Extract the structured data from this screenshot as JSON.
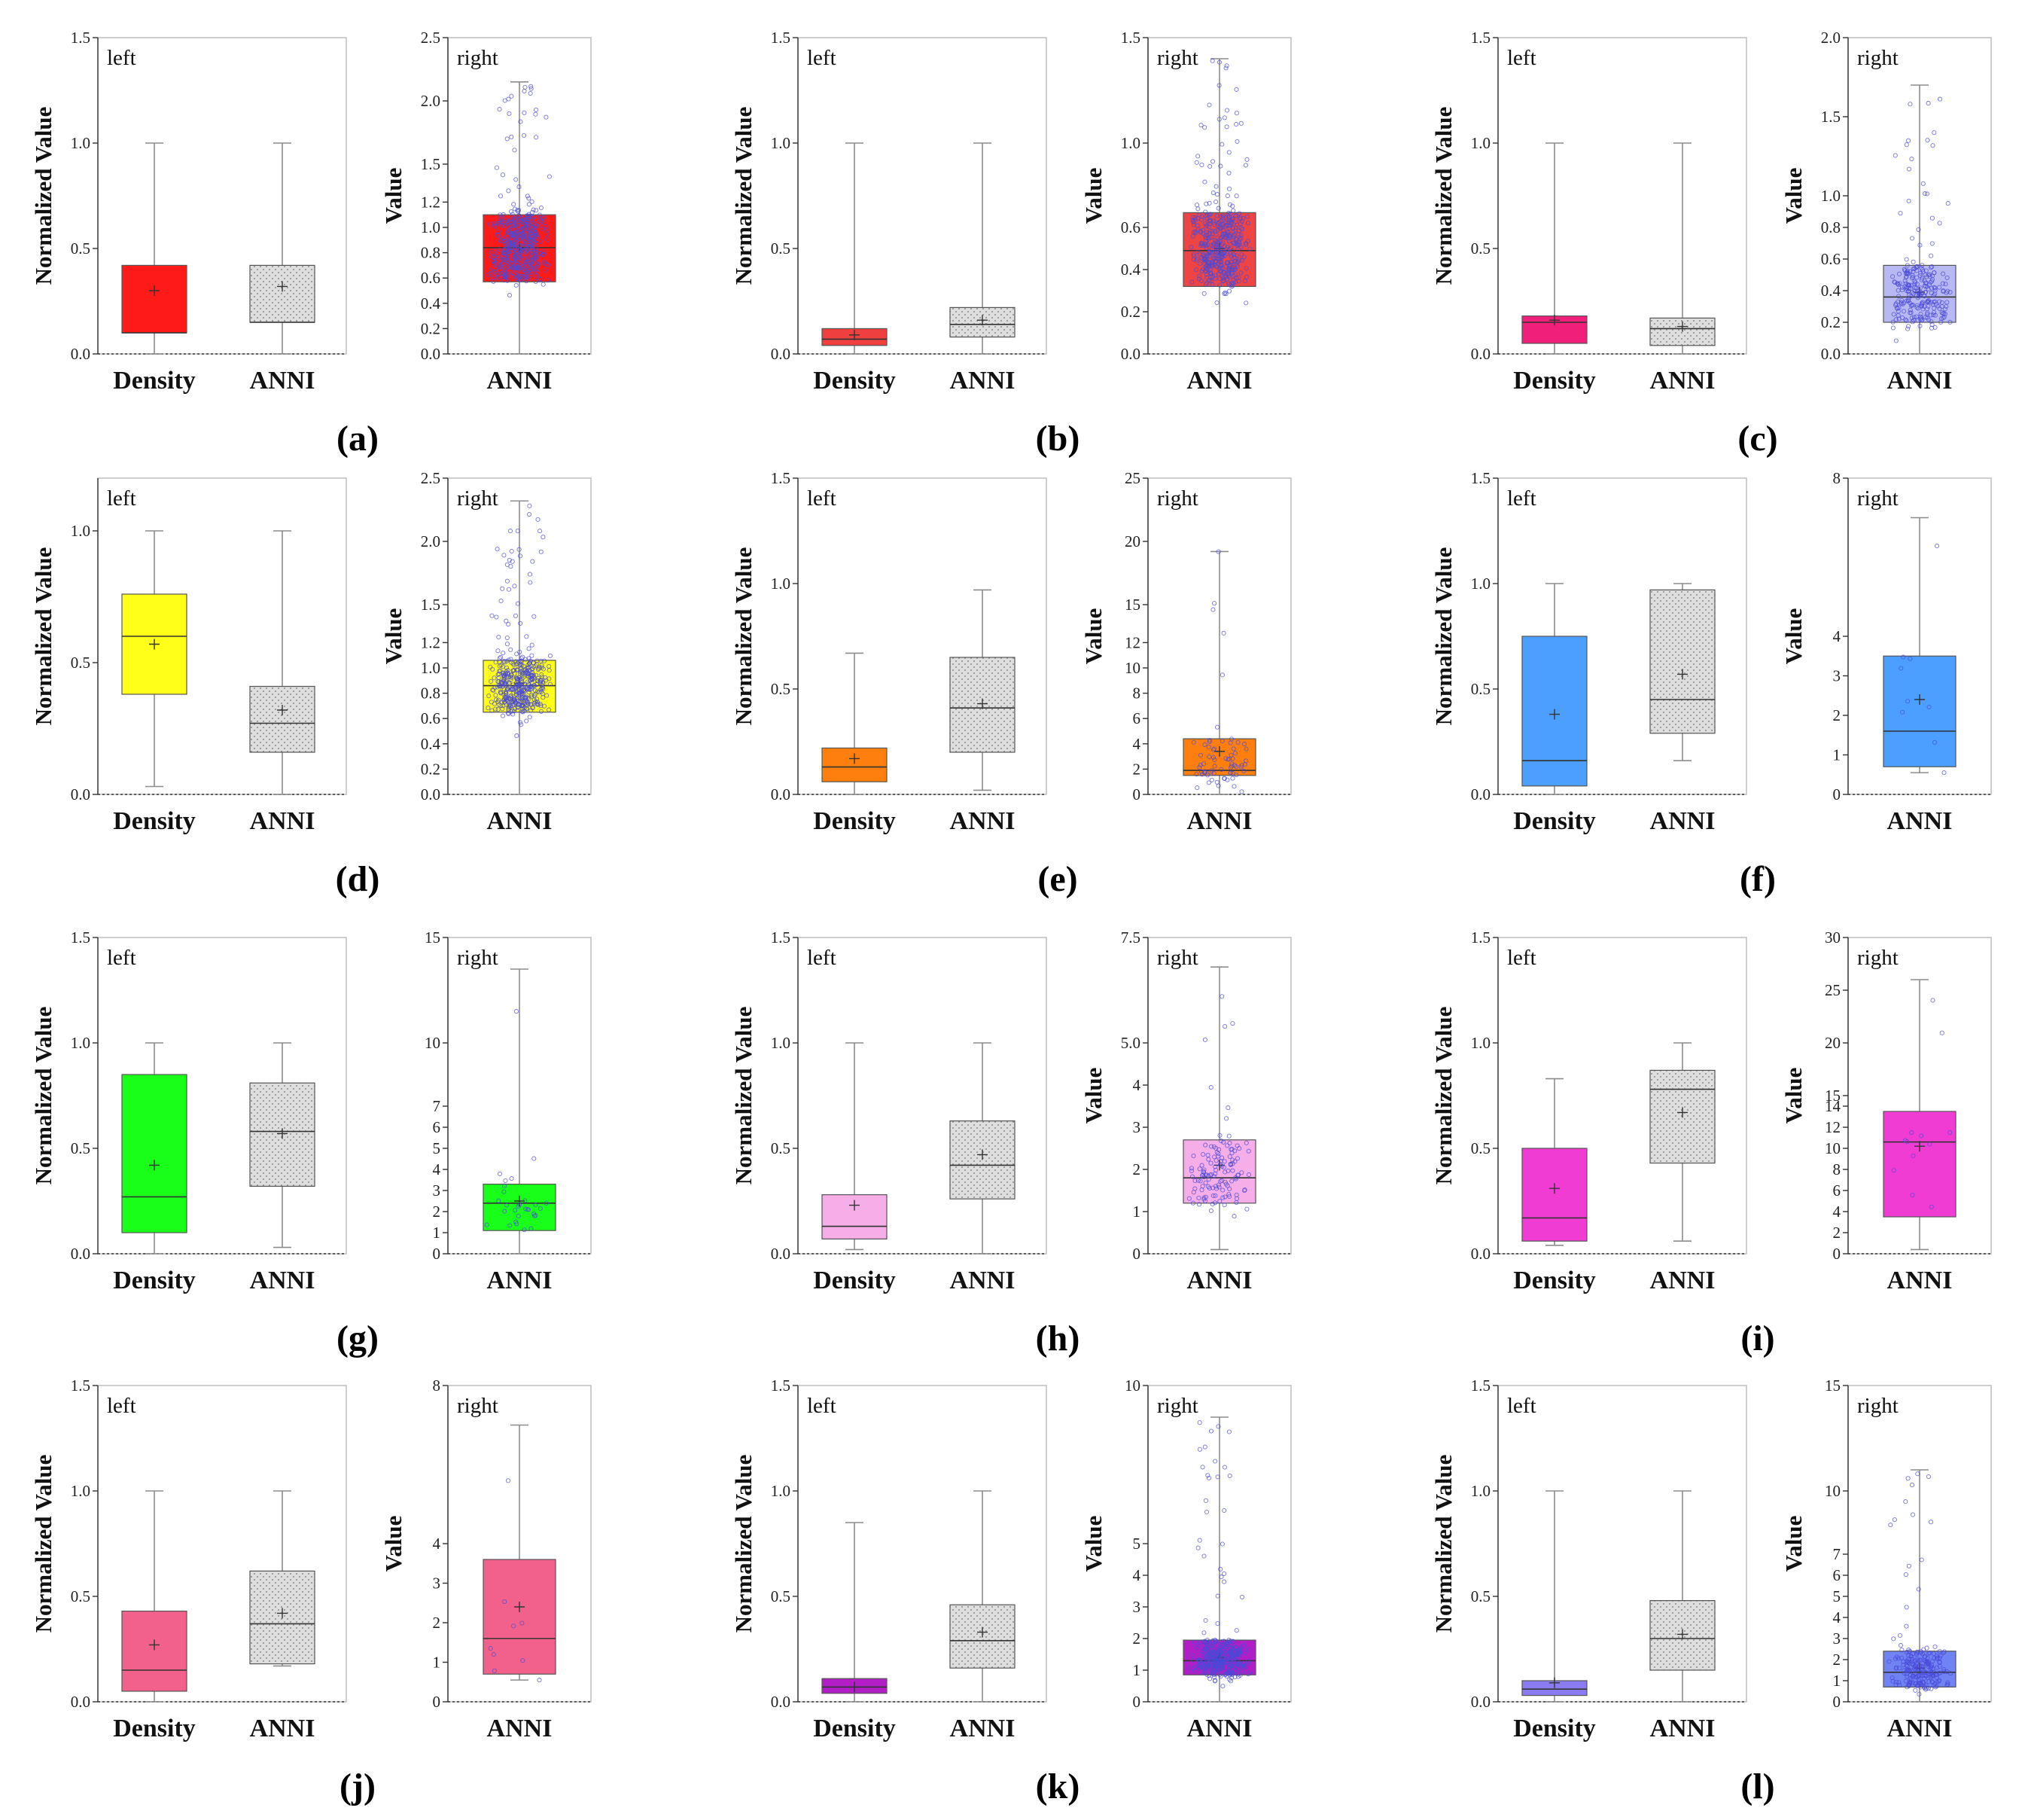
{
  "figure": {
    "panel_labels": [
      "(a)",
      "(b)",
      "(c)",
      "(d)",
      "(e)",
      "(f)",
      "(g)",
      "(h)",
      "(i)",
      "(j)",
      "(k)",
      "(l)"
    ]
  },
  "chart_data": [
    {
      "type": "box",
      "panel": "a",
      "side": "left",
      "corner_label": "left",
      "ylabel": "Normalized Value",
      "ylim": [
        0,
        1.5
      ],
      "yticks": [
        "0.0",
        "0.5",
        "1.0",
        "1.5"
      ],
      "ytick_values": [
        0,
        0.5,
        1,
        1.5
      ],
      "categories": [
        "Density",
        "ANNI"
      ],
      "boxes": [
        {
          "min": 0.0,
          "q1": 0.1,
          "median": 0.1,
          "q3": 0.42,
          "max": 1.0,
          "mean": 0.3,
          "color": "#ff1a1a",
          "hatched": false
        },
        {
          "min": 0.0,
          "q1": 0.15,
          "median": 0.15,
          "q3": 0.42,
          "max": 1.0,
          "mean": 0.32,
          "color": "#d4d4d4",
          "hatched": true
        }
      ]
    },
    {
      "type": "box",
      "panel": "a",
      "side": "right",
      "corner_label": "right",
      "ylabel": "Value",
      "ylim": [
        0,
        2.5
      ],
      "yticks": [
        "0.0",
        "0.2",
        "0.4",
        "0.6",
        "0.8",
        "1.0",
        "1.2",
        "1.5",
        "2.0",
        "2.5"
      ],
      "ytick_values": [
        0,
        0.2,
        0.4,
        0.6,
        0.8,
        1.0,
        1.2,
        1.5,
        2.0,
        2.5
      ],
      "categories": [
        "ANNI"
      ],
      "boxes": [
        {
          "min": 0.0,
          "q1": 0.57,
          "median": 0.84,
          "q3": 1.1,
          "max": 2.15,
          "mean": 0.84,
          "color": "#ff1a1a",
          "hatched": false
        }
      ],
      "point_count": 450
    },
    {
      "type": "box",
      "panel": "b",
      "side": "left",
      "corner_label": "left",
      "ylabel": "Normalized Value",
      "ylim": [
        0,
        1.5
      ],
      "yticks": [
        "0.0",
        "0.5",
        "1.0",
        "1.5"
      ],
      "ytick_values": [
        0,
        0.5,
        1,
        1.5
      ],
      "categories": [
        "Density",
        "ANNI"
      ],
      "boxes": [
        {
          "min": 0.0,
          "q1": 0.04,
          "median": 0.07,
          "q3": 0.12,
          "max": 1.0,
          "mean": 0.09,
          "color": "#ef3f3f",
          "hatched": false
        },
        {
          "min": 0.0,
          "q1": 0.08,
          "median": 0.14,
          "q3": 0.22,
          "max": 1.0,
          "mean": 0.16,
          "color": "#d4d4d4",
          "hatched": true
        }
      ]
    },
    {
      "type": "box",
      "panel": "b",
      "side": "right",
      "corner_label": "right",
      "ylabel": "Value",
      "ylim": [
        0,
        1.5
      ],
      "yticks": [
        "0.0",
        "0.2",
        "0.4",
        "0.6",
        "1.0",
        "1.5"
      ],
      "ytick_values": [
        0,
        0.2,
        0.4,
        0.6,
        1.0,
        1.5
      ],
      "categories": [
        "ANNI"
      ],
      "boxes": [
        {
          "min": 0.0,
          "q1": 0.32,
          "median": 0.49,
          "q3": 0.67,
          "max": 1.4,
          "mean": 0.5,
          "color": "#ef4444",
          "hatched": false
        }
      ],
      "point_count": 420
    },
    {
      "type": "box",
      "panel": "c",
      "side": "left",
      "corner_label": "left",
      "ylabel": "Normalized Value",
      "ylim": [
        0,
        1.5
      ],
      "yticks": [
        "0.0",
        "0.5",
        "1.0",
        "1.5"
      ],
      "ytick_values": [
        0,
        0.5,
        1,
        1.5
      ],
      "categories": [
        "Density",
        "ANNI"
      ],
      "boxes": [
        {
          "min": 0.0,
          "q1": 0.05,
          "median": 0.15,
          "q3": 0.18,
          "max": 1.0,
          "mean": 0.16,
          "color": "#f0207a",
          "hatched": false
        },
        {
          "min": 0.0,
          "q1": 0.04,
          "median": 0.12,
          "q3": 0.17,
          "max": 1.0,
          "mean": 0.13,
          "color": "#d4d4d4",
          "hatched": true
        }
      ]
    },
    {
      "type": "box",
      "panel": "c",
      "side": "right",
      "corner_label": "right",
      "ylabel": "Value",
      "ylim": [
        0,
        2.0
      ],
      "yticks": [
        "0.0",
        "0.2",
        "0.4",
        "0.6",
        "0.8",
        "1.0",
        "1.5",
        "2.0"
      ],
      "ytick_values": [
        0,
        0.2,
        0.4,
        0.6,
        0.8,
        1.0,
        1.5,
        2.0
      ],
      "categories": [
        "ANNI"
      ],
      "boxes": [
        {
          "min": 0.0,
          "q1": 0.2,
          "median": 0.36,
          "q3": 0.56,
          "max": 1.7,
          "mean": 0.39,
          "color": "#b8b8f2",
          "hatched": false
        }
      ],
      "point_count": 250
    },
    {
      "type": "box",
      "panel": "d",
      "side": "left",
      "corner_label": "left",
      "ylabel": "Normalized Value",
      "ylim": [
        0,
        1.2
      ],
      "yticks": [
        "0.0",
        "0.5",
        "1.0"
      ],
      "ytick_values": [
        0,
        0.5,
        1.0
      ],
      "categories": [
        "Density",
        "ANNI"
      ],
      "boxes": [
        {
          "min": 0.03,
          "q1": 0.38,
          "median": 0.6,
          "q3": 0.76,
          "max": 1.0,
          "mean": 0.57,
          "color": "#ffff1a",
          "hatched": false
        },
        {
          "min": 0.0,
          "q1": 0.16,
          "median": 0.27,
          "q3": 0.41,
          "max": 1.0,
          "mean": 0.32,
          "color": "#d4d4d4",
          "hatched": true
        }
      ]
    },
    {
      "type": "box",
      "panel": "d",
      "side": "right",
      "corner_label": "right",
      "ylabel": "Value",
      "ylim": [
        0,
        2.5
      ],
      "yticks": [
        "0.0",
        "0.2",
        "0.4",
        "0.6",
        "0.8",
        "1.0",
        "1.2",
        "1.5",
        "2.0",
        "2.5"
      ],
      "ytick_values": [
        0,
        0.2,
        0.4,
        0.6,
        0.8,
        1.0,
        1.2,
        1.5,
        2.0,
        2.5
      ],
      "categories": [
        "ANNI"
      ],
      "boxes": [
        {
          "min": 0.0,
          "q1": 0.65,
          "median": 0.86,
          "q3": 1.06,
          "max": 2.32,
          "mean": 0.88,
          "color": "#ffff1a",
          "hatched": false
        }
      ],
      "point_count": 450
    },
    {
      "type": "box",
      "panel": "e",
      "side": "left",
      "corner_label": "left",
      "ylabel": "Normalized Value",
      "ylim": [
        0,
        1.5
      ],
      "yticks": [
        "0.0",
        "0.5",
        "1.0",
        "1.5"
      ],
      "ytick_values": [
        0,
        0.5,
        1,
        1.5
      ],
      "categories": [
        "Density",
        "ANNI"
      ],
      "boxes": [
        {
          "min": 0.0,
          "q1": 0.06,
          "median": 0.13,
          "q3": 0.22,
          "max": 0.67,
          "mean": 0.17,
          "color": "#ff7f0e",
          "hatched": false
        },
        {
          "min": 0.02,
          "q1": 0.2,
          "median": 0.41,
          "q3": 0.65,
          "max": 0.97,
          "mean": 0.43,
          "color": "#d4d4d4",
          "hatched": true
        }
      ]
    },
    {
      "type": "box",
      "panel": "e",
      "side": "right",
      "corner_label": "right",
      "ylabel": "Value",
      "ylim": [
        0,
        25
      ],
      "yticks": [
        "0",
        "2",
        "4",
        "6",
        "8",
        "10",
        "12",
        "15",
        "20",
        "25"
      ],
      "ytick_values": [
        0,
        2,
        4,
        6,
        8,
        10,
        12,
        15,
        20,
        25
      ],
      "categories": [
        "ANNI"
      ],
      "boxes": [
        {
          "min": 0.0,
          "q1": 1.5,
          "median": 1.9,
          "q3": 4.4,
          "max": 19.2,
          "mean": 3.4,
          "color": "#ff7f0e",
          "hatched": false
        }
      ],
      "point_count": 70
    },
    {
      "type": "box",
      "panel": "f",
      "side": "left",
      "corner_label": "left",
      "ylabel": "Normalized Value",
      "ylim": [
        0,
        1.5
      ],
      "yticks": [
        "0.0",
        "0.5",
        "1.0",
        "1.5"
      ],
      "ytick_values": [
        0,
        0.5,
        1,
        1.5
      ],
      "categories": [
        "Density",
        "ANNI"
      ],
      "boxes": [
        {
          "min": 0.0,
          "q1": 0.04,
          "median": 0.16,
          "q3": 0.75,
          "max": 1.0,
          "mean": 0.38,
          "color": "#4d9fff",
          "hatched": false
        },
        {
          "min": 0.16,
          "q1": 0.29,
          "median": 0.45,
          "q3": 0.97,
          "max": 1.0,
          "mean": 0.57,
          "color": "#d4d4d4",
          "hatched": true
        }
      ]
    },
    {
      "type": "box",
      "panel": "f",
      "side": "right",
      "corner_label": "right",
      "ylabel": "Value",
      "ylim": [
        0,
        8
      ],
      "yticks": [
        "0",
        "1",
        "2",
        "3",
        "4",
        "8"
      ],
      "ytick_values": [
        0,
        1,
        2,
        3,
        4,
        8
      ],
      "categories": [
        "ANNI"
      ],
      "boxes": [
        {
          "min": 0.55,
          "q1": 0.7,
          "median": 1.6,
          "q3": 3.5,
          "max": 7.0,
          "mean": 2.4,
          "color": "#4d9fff",
          "hatched": false
        }
      ],
      "point_count": 9
    },
    {
      "type": "box",
      "panel": "g",
      "side": "left",
      "corner_label": "left",
      "ylabel": "Normalized Value",
      "ylim": [
        0,
        1.5
      ],
      "yticks": [
        "0.0",
        "0.5",
        "1.0",
        "1.5"
      ],
      "ytick_values": [
        0,
        0.5,
        1,
        1.5
      ],
      "categories": [
        "Density",
        "ANNI"
      ],
      "boxes": [
        {
          "min": 0.0,
          "q1": 0.1,
          "median": 0.27,
          "q3": 0.85,
          "max": 1.0,
          "mean": 0.42,
          "color": "#1aff1a",
          "hatched": false
        },
        {
          "min": 0.03,
          "q1": 0.32,
          "median": 0.58,
          "q3": 0.81,
          "max": 1.0,
          "mean": 0.57,
          "color": "#d4d4d4",
          "hatched": true
        }
      ]
    },
    {
      "type": "box",
      "panel": "g",
      "side": "right",
      "corner_label": "right",
      "ylabel": "",
      "ylim": [
        0,
        15
      ],
      "yticks": [
        "0",
        "1",
        "2",
        "3",
        "4",
        "5",
        "6",
        "7",
        "10",
        "15"
      ],
      "ytick_values": [
        0,
        1,
        2,
        3,
        4,
        5,
        6,
        7,
        10,
        15
      ],
      "categories": [
        "ANNI"
      ],
      "boxes": [
        {
          "min": 0.0,
          "q1": 1.1,
          "median": 2.4,
          "q3": 3.3,
          "max": 13.5,
          "mean": 2.5,
          "color": "#1aff1a",
          "hatched": false
        }
      ],
      "point_count": 30
    },
    {
      "type": "box",
      "panel": "h",
      "side": "left",
      "corner_label": "left",
      "ylabel": "Normalized Value",
      "ylim": [
        0,
        1.5
      ],
      "yticks": [
        "0.0",
        "0.5",
        "1.0",
        "1.5"
      ],
      "ytick_values": [
        0,
        0.5,
        1,
        1.5
      ],
      "categories": [
        "Density",
        "ANNI"
      ],
      "boxes": [
        {
          "min": 0.02,
          "q1": 0.07,
          "median": 0.13,
          "q3": 0.28,
          "max": 1.0,
          "mean": 0.23,
          "color": "#f5aee8",
          "hatched": false
        },
        {
          "min": 0.0,
          "q1": 0.26,
          "median": 0.42,
          "q3": 0.63,
          "max": 1.0,
          "mean": 0.47,
          "color": "#d4d4d4",
          "hatched": true
        }
      ]
    },
    {
      "type": "box",
      "panel": "h",
      "side": "right",
      "corner_label": "right",
      "ylabel": "Value",
      "ylim": [
        0,
        7.5
      ],
      "yticks": [
        "0",
        "1",
        "2",
        "3",
        "4",
        "5.0",
        "7.5"
      ],
      "ytick_values": [
        0,
        1,
        2,
        3,
        4,
        5,
        7.5
      ],
      "categories": [
        "ANNI"
      ],
      "boxes": [
        {
          "min": 0.1,
          "q1": 1.2,
          "median": 1.8,
          "q3": 2.7,
          "max": 6.8,
          "mean": 2.1,
          "color": "#f5aee8",
          "hatched": false
        }
      ],
      "point_count": 130
    },
    {
      "type": "box",
      "panel": "i",
      "side": "left",
      "corner_label": "left",
      "ylabel": "Normalized Value",
      "ylim": [
        0,
        1.5
      ],
      "yticks": [
        "0.0",
        "0.5",
        "1.0",
        "1.5"
      ],
      "ytick_values": [
        0,
        0.5,
        1,
        1.5
      ],
      "categories": [
        "Density",
        "ANNI"
      ],
      "boxes": [
        {
          "min": 0.04,
          "q1": 0.06,
          "median": 0.17,
          "q3": 0.5,
          "max": 0.83,
          "mean": 0.31,
          "color": "#f03cd2",
          "hatched": false
        },
        {
          "min": 0.06,
          "q1": 0.43,
          "median": 0.78,
          "q3": 0.87,
          "max": 1.0,
          "mean": 0.67,
          "color": "#d4d4d4",
          "hatched": true
        }
      ]
    },
    {
      "type": "box",
      "panel": "i",
      "side": "right",
      "corner_label": "right",
      "ylabel": "Value",
      "ylim": [
        0,
        30
      ],
      "yticks": [
        "0",
        "2",
        "4",
        "6",
        "8",
        "10",
        "12",
        "14",
        "15",
        "20",
        "25",
        "30"
      ],
      "ytick_values": [
        0,
        2,
        4,
        6,
        8,
        10,
        12,
        14,
        15,
        20,
        25,
        30
      ],
      "categories": [
        "ANNI"
      ],
      "boxes": [
        {
          "min": 0.4,
          "q1": 3.5,
          "median": 10.6,
          "q3": 13.5,
          "max": 26.0,
          "mean": 10.2,
          "color": "#f03cd2",
          "hatched": false
        }
      ],
      "point_count": 12
    },
    {
      "type": "box",
      "panel": "j",
      "side": "left",
      "corner_label": "left",
      "ylabel": "Normalized Value",
      "ylim": [
        0,
        1.5
      ],
      "yticks": [
        "0.0",
        "0.5",
        "1.0",
        "1.5"
      ],
      "ytick_values": [
        0,
        0.5,
        1,
        1.5
      ],
      "categories": [
        "Density",
        "ANNI"
      ],
      "boxes": [
        {
          "min": 0.0,
          "q1": 0.05,
          "median": 0.15,
          "q3": 0.43,
          "max": 1.0,
          "mean": 0.27,
          "color": "#f2608c",
          "hatched": false
        },
        {
          "min": 0.17,
          "q1": 0.18,
          "median": 0.37,
          "q3": 0.62,
          "max": 1.0,
          "mean": 0.42,
          "color": "#d4d4d4",
          "hatched": true
        }
      ]
    },
    {
      "type": "box",
      "panel": "j",
      "side": "right",
      "corner_label": "right",
      "ylabel": "Value",
      "ylim": [
        0,
        8
      ],
      "yticks": [
        "0",
        "1",
        "2",
        "3",
        "4",
        "8"
      ],
      "ytick_values": [
        0,
        1,
        2,
        3,
        4,
        8
      ],
      "categories": [
        "ANNI"
      ],
      "boxes": [
        {
          "min": 0.55,
          "q1": 0.7,
          "median": 1.6,
          "q3": 3.6,
          "max": 7.0,
          "mean": 2.4,
          "color": "#f2608c",
          "hatched": false
        }
      ],
      "point_count": 9
    },
    {
      "type": "box",
      "panel": "k",
      "side": "left",
      "corner_label": "left",
      "ylabel": "Normalized Value",
      "ylim": [
        0,
        1.5
      ],
      "yticks": [
        "0.0",
        "0.5",
        "1.0",
        "1.5"
      ],
      "ytick_values": [
        0,
        0.5,
        1,
        1.5
      ],
      "categories": [
        "Density",
        "ANNI"
      ],
      "boxes": [
        {
          "min": 0.0,
          "q1": 0.04,
          "median": 0.07,
          "q3": 0.11,
          "max": 0.85,
          "mean": 0.07,
          "color": "#b21ec6",
          "hatched": false
        },
        {
          "min": 0.0,
          "q1": 0.16,
          "median": 0.29,
          "q3": 0.46,
          "max": 1.0,
          "mean": 0.33,
          "color": "#d4d4d4",
          "hatched": true
        }
      ]
    },
    {
      "type": "box",
      "panel": "k",
      "side": "right",
      "corner_label": "right",
      "ylabel": "Value",
      "ylim": [
        0,
        10
      ],
      "yticks": [
        "0",
        "1",
        "2",
        "3",
        "4",
        "5",
        "10"
      ],
      "ytick_values": [
        0,
        1,
        2,
        3,
        4,
        5,
        10
      ],
      "categories": [
        "ANNI"
      ],
      "boxes": [
        {
          "min": 0.0,
          "q1": 0.85,
          "median": 1.3,
          "q3": 1.95,
          "max": 9.0,
          "mean": 1.4,
          "color": "#b21ec6",
          "hatched": false
        }
      ],
      "point_count": 350
    },
    {
      "type": "box",
      "panel": "l",
      "side": "left",
      "corner_label": "left",
      "ylabel": "Normalized Value",
      "ylim": [
        0,
        1.5
      ],
      "yticks": [
        "0.0",
        "0.5",
        "1.0",
        "1.5"
      ],
      "ytick_values": [
        0,
        0.5,
        1,
        1.5
      ],
      "categories": [
        "Density",
        "ANNI"
      ],
      "boxes": [
        {
          "min": 0.0,
          "q1": 0.03,
          "median": 0.06,
          "q3": 0.1,
          "max": 1.0,
          "mean": 0.09,
          "color": "#8a7cf0",
          "hatched": false
        },
        {
          "min": 0.0,
          "q1": 0.15,
          "median": 0.3,
          "q3": 0.48,
          "max": 1.0,
          "mean": 0.32,
          "color": "#d4d4d4",
          "hatched": true
        }
      ]
    },
    {
      "type": "box",
      "panel": "l",
      "side": "right",
      "corner_label": "right",
      "ylabel": "Value",
      "ylim": [
        0,
        15
      ],
      "yticks": [
        "0",
        "1",
        "2",
        "3",
        "4",
        "5",
        "6",
        "7",
        "10",
        "15"
      ],
      "ytick_values": [
        0,
        1,
        2,
        3,
        4,
        5,
        6,
        7,
        10,
        15
      ],
      "categories": [
        "ANNI"
      ],
      "boxes": [
        {
          "min": 0.0,
          "q1": 0.7,
          "median": 1.4,
          "q3": 2.4,
          "max": 11.0,
          "mean": 1.6,
          "color": "#6f83f2",
          "hatched": false
        }
      ],
      "point_count": 220
    }
  ]
}
